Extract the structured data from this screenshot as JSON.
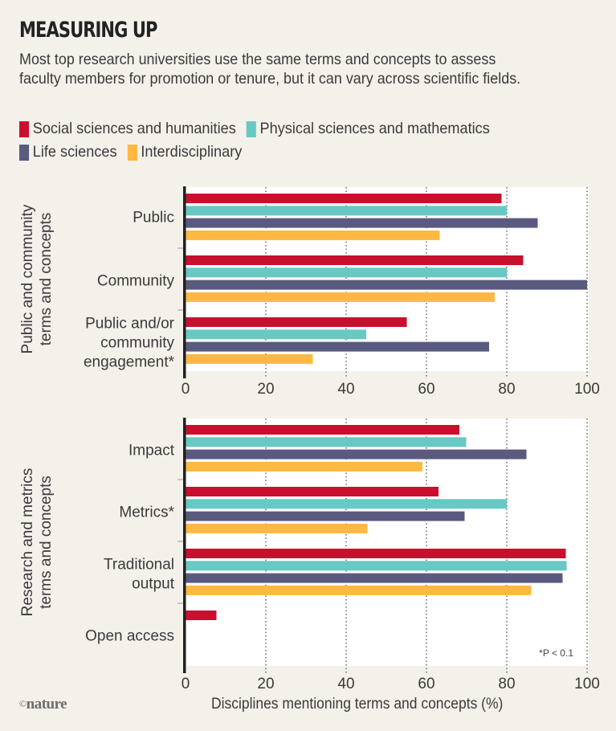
{
  "header": {
    "title": "MEASURING UP",
    "subtitle": "Most top research universities use the same terms and concepts to assess faculty members for promotion or tenure, but it can vary across scientific fields."
  },
  "legend": [
    {
      "label": "Social sciences and humanities",
      "color": "#c8102e"
    },
    {
      "label": "Physical sciences and mathematics",
      "color": "#68c8c4"
    },
    {
      "label": "Life sciences",
      "color": "#5a5a80"
    },
    {
      "label": "Interdisciplinary",
      "color": "#ffb842"
    }
  ],
  "footer": {
    "logo_symbol": "©",
    "logo_text": "nature",
    "footnote": "*P < 0.1"
  },
  "chart_data": {
    "type": "bar",
    "orientation": "horizontal",
    "title": "MEASURING UP",
    "xlabel": "Disciplines mentioning terms and concepts (%)",
    "xlim": [
      0,
      100
    ],
    "xticks": [
      0,
      20,
      40,
      60,
      80,
      100
    ],
    "grid": "vertical dotted",
    "legend_position": "top",
    "series_names": [
      "Social sciences and humanities",
      "Physical sciences and mathematics",
      "Life sciences",
      "Interdisciplinary"
    ],
    "panels": [
      {
        "ylabel": "Public and community terms and concepts",
        "categories": [
          {
            "label": "Public",
            "values": [
              78.7,
              80,
              87.7,
              63.3
            ]
          },
          {
            "label": "Community",
            "values": [
              84.1,
              80,
              100,
              77
            ]
          },
          {
            "label": "Public and/or community engagement*",
            "lines": [
              "Public and/or",
              "community",
              "engagement*"
            ],
            "values": [
              55.1,
              45,
              75.6,
              31.7
            ]
          }
        ]
      },
      {
        "ylabel": "Research and metrics terms and concepts",
        "categories": [
          {
            "label": "Impact",
            "values": [
              68.2,
              69.9,
              84.9,
              59
            ]
          },
          {
            "label": "Metrics*",
            "values": [
              63,
              80,
              69.5,
              45.3
            ]
          },
          {
            "label": "Traditional output",
            "lines": [
              "Traditional",
              "output"
            ],
            "values": [
              94.7,
              94.9,
              93.9,
              86.1
            ]
          },
          {
            "label": "Open access",
            "values": [
              7.7,
              0,
              0,
              0
            ]
          }
        ],
        "annotation": "*P < 0.1"
      }
    ]
  }
}
